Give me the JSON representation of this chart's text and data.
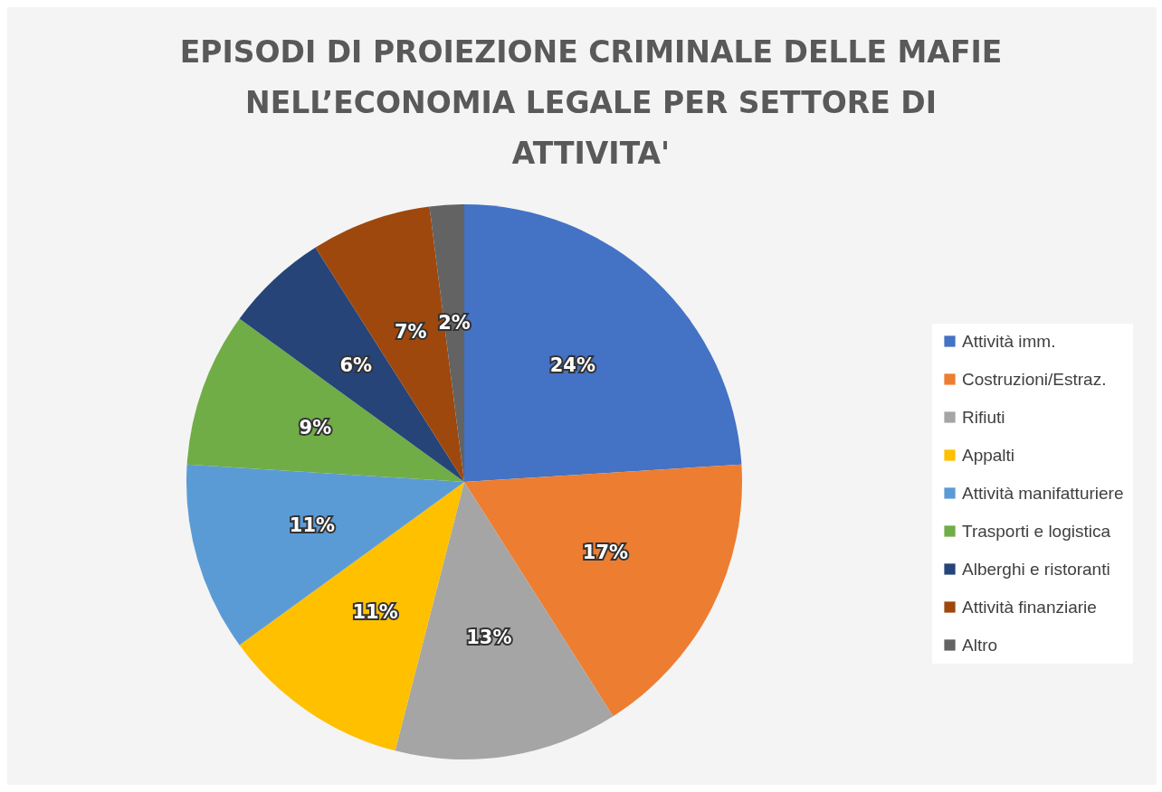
{
  "chart_data": {
    "type": "pie",
    "title": [
      "EPISODI DI PROIEZIONE CRIMINALE DELLE MAFIE",
      "NELL’ECONOMIA LEGALE PER SETTORE DI",
      "ATTIVITA'"
    ],
    "categories": [
      "Attività imm.",
      "Costruzioni/Estraz.",
      "Rifiuti",
      "Appalti",
      "Attività manifatturiere",
      "Trasporti e logistica",
      "Alberghi e ristoranti",
      "Attività finanziarie",
      "Altro"
    ],
    "values": [
      24,
      17,
      13,
      11,
      11,
      9,
      6,
      7,
      2
    ],
    "value_labels": [
      "24%",
      "17%",
      "13%",
      "11%",
      "11%",
      "9%",
      "6%",
      "7%",
      "2%"
    ],
    "colors": [
      "#4472c4",
      "#ed7d31",
      "#a5a5a5",
      "#ffc000",
      "#5b9bd5",
      "#70ad47",
      "#264478",
      "#9e480e",
      "#636363"
    ],
    "legend": "right"
  }
}
